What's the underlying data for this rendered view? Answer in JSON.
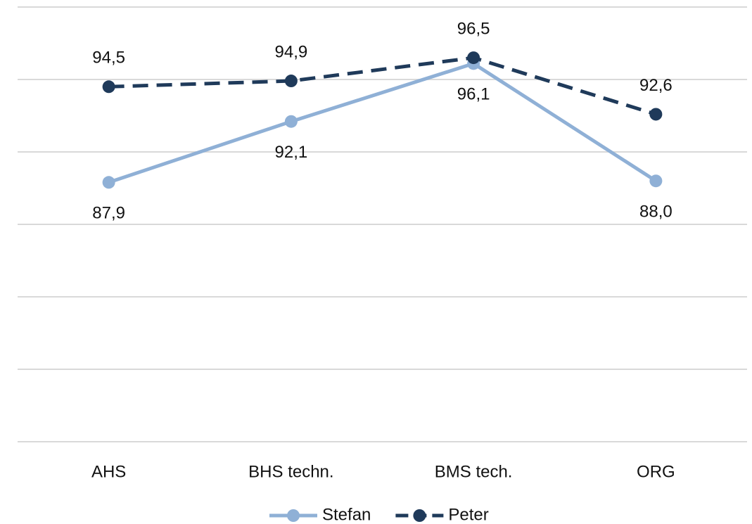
{
  "chart_data": {
    "type": "line",
    "categories": [
      "AHS",
      "BHS techn.",
      "BMS tech.",
      "ORG"
    ],
    "series": [
      {
        "name": "Stefan",
        "color": "#8fb0d6",
        "dash": false,
        "values": [
          87.9,
          92.1,
          96.1,
          88.0
        ],
        "value_labels": [
          "87,9",
          "92,1",
          "96,1",
          "88,0"
        ],
        "label_position": "below"
      },
      {
        "name": "Peter",
        "color": "#1f3a5a",
        "dash": true,
        "values": [
          94.5,
          94.9,
          96.5,
          92.6
        ],
        "value_labels": [
          "94,5",
          "94,9",
          "96,5",
          "92,6"
        ],
        "label_position": "above"
      }
    ],
    "ylim": [
      70,
      100
    ],
    "yticks": [
      70,
      75,
      80,
      85,
      90,
      95,
      100
    ],
    "grid": true,
    "legend": "bottom"
  }
}
